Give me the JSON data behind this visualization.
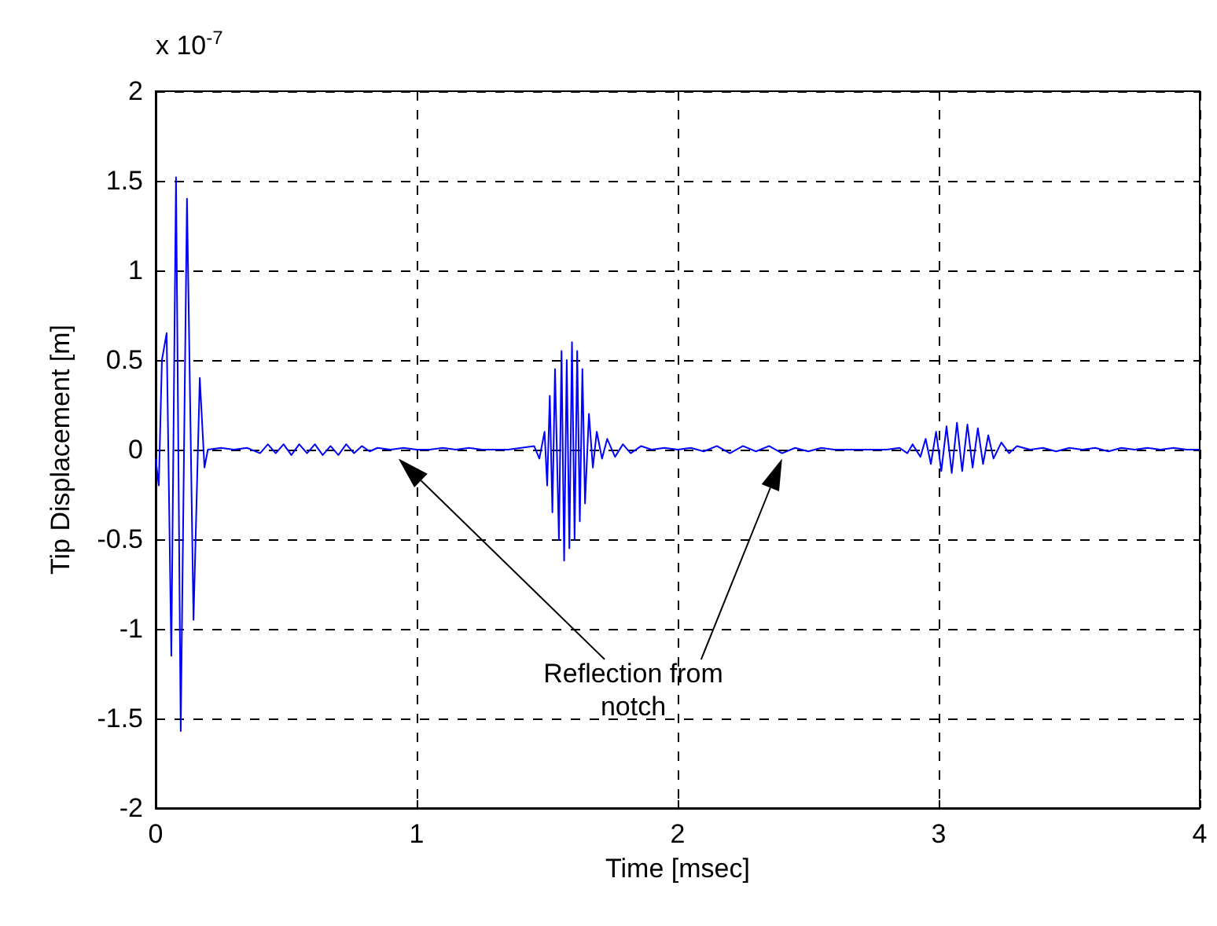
{
  "chart_data": {
    "type": "line",
    "xlabel": "Time [msec]",
    "ylabel": "Tip Displacement [m]",
    "annotations": [
      "x 10$^{-7}$",
      "Reflection from\nnotch"
    ],
    "xlim": [
      0,
      4
    ],
    "xticks": [
      0,
      1,
      2,
      3,
      4
    ],
    "ylim": [
      -2,
      2
    ],
    "yticks": [
      -2,
      -1.5,
      -1,
      -0.5,
      0,
      0.5,
      1,
      1.5,
      2
    ],
    "grid": true,
    "marker": "none",
    "line_style": "solid",
    "series": [
      {
        "color": "#0000ff",
        "x": [
          0,
          0.012,
          0.024,
          0.042,
          0.06,
          0.078,
          0.096,
          0.12,
          0.145,
          0.169,
          0.187,
          0.2,
          0.25,
          0.3,
          0.35,
          0.4,
          0.43,
          0.46,
          0.49,
          0.52,
          0.55,
          0.58,
          0.61,
          0.64,
          0.67,
          0.7,
          0.73,
          0.76,
          0.79,
          0.82,
          0.85,
          0.9,
          0.95,
          1.0,
          1.05,
          1.1,
          1.15,
          1.2,
          1.25,
          1.3,
          1.35,
          1.4,
          1.45,
          1.47,
          1.49,
          1.5,
          1.51,
          1.52,
          1.53,
          1.545,
          1.555,
          1.565,
          1.575,
          1.585,
          1.595,
          1.605,
          1.615,
          1.625,
          1.635,
          1.645,
          1.66,
          1.675,
          1.69,
          1.71,
          1.73,
          1.76,
          1.79,
          1.82,
          1.86,
          1.9,
          1.95,
          2.0,
          2.05,
          2.1,
          2.15,
          2.2,
          2.25,
          2.3,
          2.35,
          2.4,
          2.45,
          2.5,
          2.55,
          2.6,
          2.7,
          2.8,
          2.85,
          2.88,
          2.9,
          2.93,
          2.95,
          2.97,
          2.99,
          3.01,
          3.03,
          3.05,
          3.07,
          3.09,
          3.11,
          3.13,
          3.15,
          3.17,
          3.19,
          3.21,
          3.24,
          3.27,
          3.3,
          3.35,
          3.4,
          3.45,
          3.5,
          3.55,
          3.6,
          3.65,
          3.7,
          3.75,
          3.8,
          3.85,
          3.9,
          3.95,
          4.0
        ],
        "values": [
          -0.05,
          -0.2,
          0.5,
          0.65,
          -1.15,
          1.52,
          -1.57,
          1.4,
          -0.95,
          0.4,
          -0.1,
          0.0,
          0.01,
          0.0,
          0.01,
          -0.02,
          0.03,
          -0.02,
          0.03,
          -0.03,
          0.03,
          -0.02,
          0.03,
          -0.03,
          0.02,
          -0.03,
          0.03,
          -0.02,
          0.02,
          -0.01,
          0.01,
          0.0,
          0.01,
          0.0,
          0.0,
          0.01,
          0.0,
          0.01,
          0.0,
          0.0,
          0.0,
          0.01,
          0.02,
          -0.05,
          0.1,
          -0.2,
          0.3,
          -0.35,
          0.45,
          -0.5,
          0.55,
          -0.62,
          0.5,
          -0.55,
          0.6,
          -0.5,
          0.55,
          -0.4,
          0.45,
          -0.3,
          0.2,
          -0.1,
          0.1,
          -0.05,
          0.06,
          -0.04,
          0.03,
          -0.02,
          0.02,
          0.0,
          0.01,
          0.0,
          0.01,
          -0.01,
          0.02,
          -0.02,
          0.02,
          -0.01,
          0.02,
          -0.02,
          0.01,
          -0.01,
          0.01,
          0.0,
          0.0,
          0.0,
          0.01,
          -0.02,
          0.03,
          -0.04,
          0.06,
          -0.08,
          0.1,
          -0.12,
          0.13,
          -0.13,
          0.15,
          -0.12,
          0.14,
          -0.1,
          0.12,
          -0.08,
          0.08,
          -0.05,
          0.04,
          -0.02,
          0.02,
          0.0,
          0.01,
          -0.01,
          0.01,
          0.0,
          0.01,
          -0.01,
          0.01,
          0.0,
          0.01,
          0.0,
          0.01,
          0.0,
          0.0
        ]
      }
    ]
  }
}
